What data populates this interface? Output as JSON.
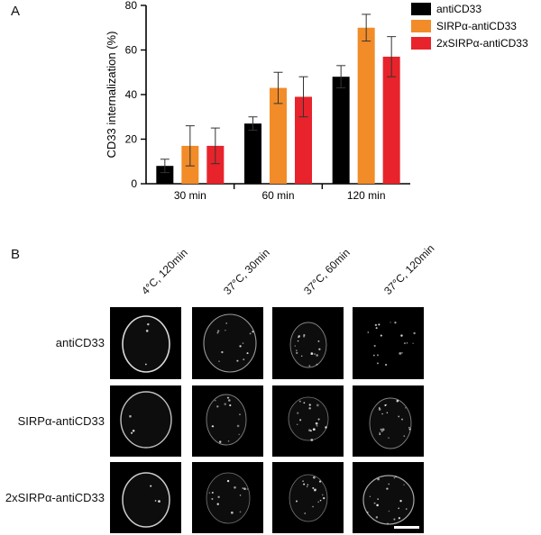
{
  "panels": {
    "a": "A",
    "b": "B"
  },
  "chart_data": {
    "type": "bar",
    "title": "",
    "xlabel": "",
    "ylabel": "CD33 internalization (%)",
    "ylim": [
      0,
      80
    ],
    "yticks": [
      0,
      20,
      40,
      60,
      80
    ],
    "categories": [
      "30 min",
      "60 min",
      "120 min"
    ],
    "legend_position": "top-right",
    "series": [
      {
        "name": "antiCD33",
        "color": "#000000",
        "values": [
          8,
          27,
          48
        ],
        "errors": [
          3,
          3,
          5
        ]
      },
      {
        "name": "SIRPα-antiCD33",
        "color": "#F28C28",
        "values": [
          17,
          43,
          70
        ],
        "errors": [
          9,
          7,
          6
        ]
      },
      {
        "name": "2xSIRPα-antiCD33",
        "color": "#E8232B",
        "values": [
          17,
          39,
          57
        ],
        "errors": [
          8,
          9,
          9
        ]
      }
    ]
  },
  "micrographs": {
    "columns": [
      "4°C, 120min",
      "37°C, 30min",
      "37°C, 60min",
      "37°C, 120min"
    ],
    "rows": [
      "antiCD33",
      "SIRPα-antiCD33",
      "2xSIRPα-antiCD33"
    ]
  }
}
